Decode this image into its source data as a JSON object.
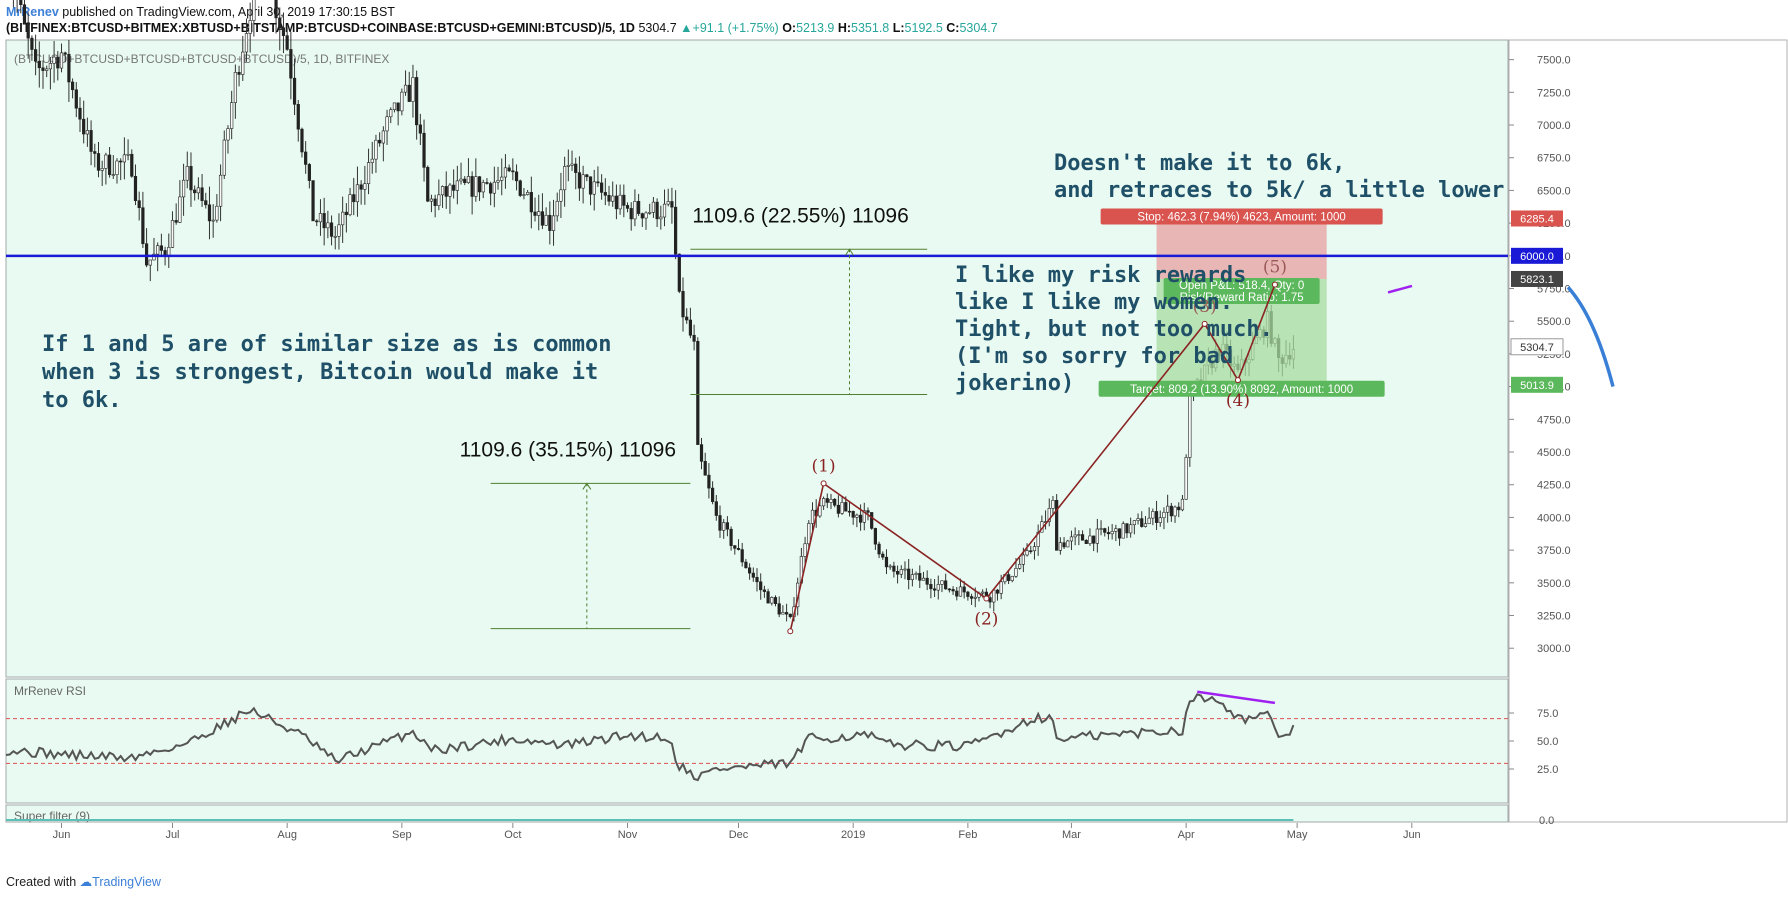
{
  "header": {
    "author": "MrRenev",
    "published": "published on TradingView.com, April 30, 2019 17:30:15 BST",
    "symbol": "(BITFINEX:BTCUSD+BITMEX:XBTUSD+BITSTAMP:BTCUSD+COINBASE:BTCUSD+GEMINI:BTCUSD)/5, 1D",
    "last": "5304.7",
    "change": "+91.1 (+1.75%)",
    "o_label": "O:",
    "o": "5213.9",
    "h_label": "H:",
    "h": "5351.8",
    "l_label": "L:",
    "l": "5192.5",
    "c_label": "C:",
    "c": "5304.7"
  },
  "pane_label": "(BTCUSD+BTCUSD+BTCUSD+BTCUSD+BTCUSD)/5, 1D, BITFINEX",
  "footer": {
    "created": "Created with",
    "brand": "TradingView"
  },
  "colors": {
    "background": "#e8faf2",
    "bull": "#3a3a3a",
    "level": "#1a1ad6",
    "wave": "#8b2323",
    "measure": "#4f7f2f",
    "stop_zone": "#e8a0a0",
    "target_zone": "#a8dca0",
    "note": "#1f5068",
    "rsi": "#555555",
    "ob": "#e05050",
    "divergence": "#a020f0",
    "projection": "#3a7fd6",
    "superfilter": "#5bbfb5"
  },
  "chart_data": {
    "type": "candlestick",
    "price_axis": {
      "ticks": [
        "7500.0",
        "7250.0",
        "7000.0",
        "6750.0",
        "6500.0",
        "6250.0",
        "6000.0",
        "5750.0",
        "5500.0",
        "5250.0",
        "5000.0",
        "4750.0",
        "4500.0",
        "4250.0",
        "4000.0",
        "3750.0",
        "3500.0",
        "3250.0",
        "3000.0"
      ],
      "tick_values": [
        7500,
        7250,
        7000,
        6750,
        6500,
        6250,
        6000,
        5750,
        5500,
        5250,
        5000,
        4750,
        4500,
        4250,
        4000,
        3750,
        3500,
        3250,
        3000
      ],
      "range": [
        2780,
        7650
      ]
    },
    "time_axis": {
      "labels": [
        "Jun",
        "Jul",
        "Aug",
        "Sep",
        "Oct",
        "Nov",
        "Dec",
        "2019",
        "Feb",
        "Mar",
        "Apr",
        "May",
        "Jun"
      ],
      "dates": [
        "2018-06-01",
        "2018-07-01",
        "2018-08-01",
        "2018-09-01",
        "2018-10-01",
        "2018-11-01",
        "2018-12-01",
        "2019-01-01",
        "2019-02-01",
        "2019-03-01",
        "2019-04-01",
        "2019-05-01",
        "2019-06-01"
      ],
      "range": [
        "2018-05-17",
        "2019-06-27"
      ]
    },
    "price_path": [
      [
        "2018-05-17",
        8300
      ],
      [
        "2018-05-25",
        7400
      ],
      [
        "2018-06-01",
        7550
      ],
      [
        "2018-06-10",
        6700
      ],
      [
        "2018-06-20",
        6700
      ],
      [
        "2018-06-24",
        5950
      ],
      [
        "2018-06-29",
        6050
      ],
      [
        "2018-07-05",
        6600
      ],
      [
        "2018-07-12",
        6250
      ],
      [
        "2018-07-18",
        7350
      ],
      [
        "2018-07-25",
        8300
      ],
      [
        "2018-08-01",
        7600
      ],
      [
        "2018-08-08",
        6300
      ],
      [
        "2018-08-14",
        6150
      ],
      [
        "2018-08-20",
        6500
      ],
      [
        "2018-08-28",
        7000
      ],
      [
        "2018-09-04",
        7300
      ],
      [
        "2018-09-08",
        6400
      ],
      [
        "2018-09-15",
        6500
      ],
      [
        "2018-10-01",
        6600
      ],
      [
        "2018-10-11",
        6250
      ],
      [
        "2018-10-15",
        6650
      ],
      [
        "2018-11-01",
        6350
      ],
      [
        "2018-11-13",
        6350
      ],
      [
        "2018-11-15",
        5650
      ],
      [
        "2018-11-19",
        5300
      ],
      [
        "2018-11-20",
        4500
      ],
      [
        "2018-11-25",
        4000
      ],
      [
        "2018-12-07",
        3450
      ],
      [
        "2018-12-15",
        3200
      ],
      [
        "2018-12-20",
        4000
      ],
      [
        "2018-12-24",
        4100
      ],
      [
        "2019-01-05",
        4000
      ],
      [
        "2019-01-10",
        3600
      ],
      [
        "2019-01-28",
        3450
      ],
      [
        "2019-02-07",
        3400
      ],
      [
        "2019-02-17",
        3700
      ],
      [
        "2019-02-24",
        4100
      ],
      [
        "2019-02-25",
        3800
      ],
      [
        "2019-03-15",
        3900
      ],
      [
        "2019-03-31",
        4100
      ],
      [
        "2019-04-02",
        4900
      ],
      [
        "2019-04-10",
        5300
      ],
      [
        "2019-04-15",
        5100
      ],
      [
        "2019-04-23",
        5500
      ],
      [
        "2019-04-26",
        5200
      ],
      [
        "2019-04-30",
        5304.7
      ]
    ],
    "series": [
      {
        "name": "MrRenev RSI",
        "ticks": [
          "75.0",
          "50.0",
          "25.0"
        ],
        "tick_values": [
          75,
          50,
          25
        ],
        "levels": [
          70,
          30
        ],
        "path": [
          [
            "2018-05-17",
            42
          ],
          [
            "2018-06-01",
            38
          ],
          [
            "2018-06-20",
            35
          ],
          [
            "2018-07-05",
            48
          ],
          [
            "2018-07-22",
            78
          ],
          [
            "2018-08-05",
            55
          ],
          [
            "2018-08-14",
            32
          ],
          [
            "2018-09-04",
            58
          ],
          [
            "2018-09-10",
            42
          ],
          [
            "2018-10-01",
            52
          ],
          [
            "2018-10-15",
            46
          ],
          [
            "2018-11-01",
            55
          ],
          [
            "2018-11-12",
            53
          ],
          [
            "2018-11-15",
            28
          ],
          [
            "2018-11-20",
            18
          ],
          [
            "2018-11-25",
            25
          ],
          [
            "2018-12-15",
            30
          ],
          [
            "2018-12-20",
            52
          ],
          [
            "2019-01-05",
            55
          ],
          [
            "2019-01-10",
            47
          ],
          [
            "2019-02-01",
            45
          ],
          [
            "2019-02-20",
            72
          ],
          [
            "2019-02-24",
            68
          ],
          [
            "2019-02-25",
            52
          ],
          [
            "2019-03-31",
            60
          ],
          [
            "2019-04-02",
            88
          ],
          [
            "2019-04-10",
            88
          ],
          [
            "2019-04-15",
            70
          ],
          [
            "2019-04-23",
            72
          ],
          [
            "2019-04-26",
            55
          ],
          [
            "2019-04-30",
            60
          ]
        ]
      },
      {
        "name": "Super filter (9)",
        "ticks": [
          "0.0"
        ],
        "tick_values": [
          0
        ]
      }
    ],
    "horizontal_level": {
      "value": 6000,
      "label": "6000.0"
    },
    "axis_tags": [
      {
        "value": 6285.4,
        "label": "6285.4",
        "kind": "stop"
      },
      {
        "value": 6000,
        "label": "6000.0",
        "kind": "level"
      },
      {
        "value": 5823.1,
        "label": "5823.1",
        "kind": "entry"
      },
      {
        "value": 5304.7,
        "label": "5304.7",
        "kind": "last"
      },
      {
        "value": 5013.9,
        "label": "5013.9",
        "kind": "target"
      }
    ],
    "position": {
      "start": "2019-03-24",
      "end": "2019-05-09",
      "stop": 6285.4,
      "entry": 5823.1,
      "target": 5013.9,
      "stop_label": "Stop: 462.3 (7.94%) 4623, Amount: 1000",
      "pnl_label": "Open P&L: 518.4, Qty: 0",
      "rr_label": "Risk/Reward Ratio: 1.75",
      "target_label": "Target: 809.2 (13.90%) 8092, Amount: 1000"
    },
    "waves": [
      {
        "label": "(1)",
        "date": "2018-12-24",
        "value": 4260
      },
      {
        "label": "(2)",
        "date": "2019-02-06",
        "value": 3380
      },
      {
        "label": "(3)",
        "date": "2019-04-06",
        "value": 5480
      },
      {
        "label": "(4)",
        "date": "2019-04-15",
        "value": 5050
      },
      {
        "label": "(5)",
        "date": "2019-04-25",
        "value": 5780
      }
    ],
    "wave_start": {
      "date": "2018-12-15",
      "value": 3130
    },
    "measurements": [
      {
        "label": "1109.6 (22.55%) 11096",
        "from_date": "2018-11-18",
        "to_date": "2019-01-21",
        "from_value": 6050,
        "to_value": 4940,
        "arrow_date": "2018-12-31"
      },
      {
        "label": "1109.6 (35.15%) 11096",
        "from_date": "2018-09-25",
        "to_date": "2018-11-18",
        "from_value": 4260,
        "to_value": 3150,
        "arrow_date": "2018-10-21"
      }
    ],
    "notes": [
      [
        "If 1 and 5 are of similar size as is common",
        "when 3 is strongest, Bitcoin would make it",
        "to 6k."
      ],
      [
        "Doesn't make it to 6k,",
        "and retraces to 5k/ a little lower"
      ],
      [
        "I like my risk rewards",
        "like I like my women.",
        "Tight, but not too much.",
        "(I'm so sorry for bad",
        "jokerino)"
      ]
    ]
  }
}
